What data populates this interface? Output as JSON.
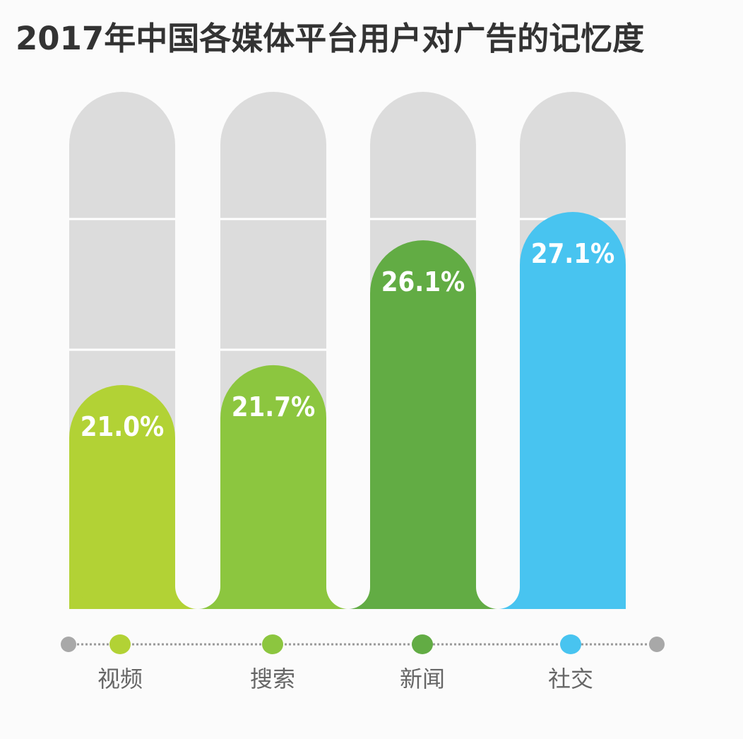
{
  "chart_data": {
    "type": "bar",
    "title": "2017年中国各媒体平台用户对广告的记忆度",
    "categories": [
      "视频",
      "搜索",
      "新闻",
      "社交"
    ],
    "values": [
      21.0,
      21.7,
      26.1,
      27.1
    ],
    "value_labels": [
      "21.0%",
      "21.7%",
      "26.1%",
      "27.1%"
    ],
    "unit": "%",
    "colors": [
      "#b2d235",
      "#8cc63f",
      "#62ac44",
      "#48c4f0"
    ],
    "track_color": "#dcdcdc",
    "grid": false,
    "legend": "none"
  }
}
